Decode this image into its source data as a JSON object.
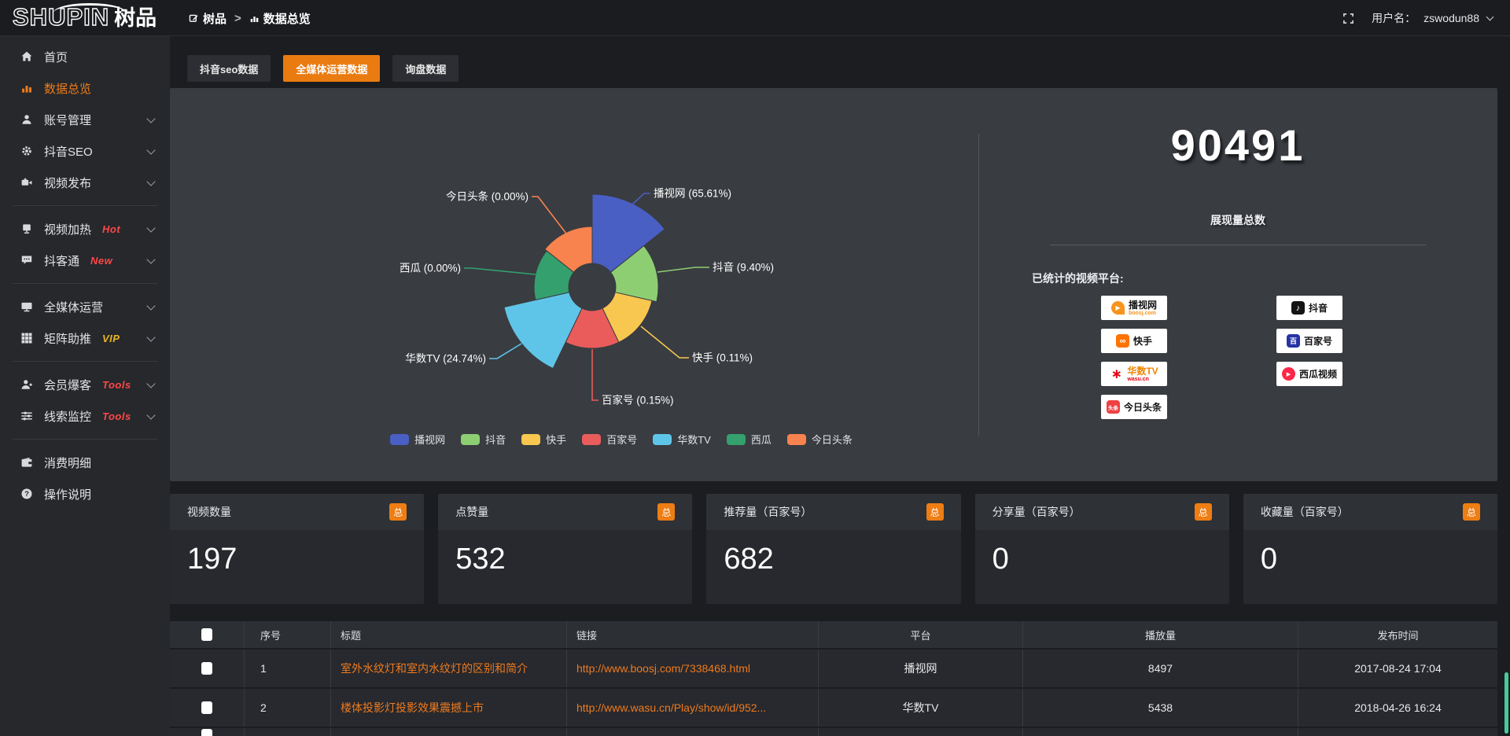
{
  "colors": {
    "accent_orange": "#ea7b11",
    "badge_orange": "#ee7d13",
    "link_orange": "#ee7a1e",
    "hot_red": "#ff4747",
    "vip_gold": "#e9b41f"
  },
  "logo": {
    "latin": "SHUPIN",
    "cjk": "树品"
  },
  "topbar": {
    "breadcrumb": {
      "root": "树品",
      "separator": ">",
      "current": "数据总览"
    },
    "username_label": "用户名：",
    "username": "zswodun88"
  },
  "sidebar": {
    "items": [
      {
        "label": "首页",
        "icon": "home",
        "chevron": false,
        "active": false,
        "badge": "",
        "badge_color": "",
        "group_end": false
      },
      {
        "label": "数据总览",
        "icon": "bars",
        "chevron": false,
        "active": true,
        "badge": "",
        "badge_color": "",
        "group_end": false
      },
      {
        "label": "账号管理",
        "icon": "user",
        "chevron": true,
        "active": false,
        "badge": "",
        "badge_color": "",
        "group_end": false
      },
      {
        "label": "抖音SEO",
        "icon": "gear",
        "chevron": true,
        "active": false,
        "badge": "",
        "badge_color": "",
        "group_end": false
      },
      {
        "label": "视频发布",
        "icon": "video",
        "chevron": true,
        "active": false,
        "badge": "",
        "badge_color": "",
        "group_end": true
      },
      {
        "label": "视频加热",
        "icon": "heat",
        "chevron": true,
        "active": false,
        "badge": "Hot",
        "badge_color": "#ff4747",
        "group_end": false
      },
      {
        "label": "抖客通",
        "icon": "chat",
        "chevron": true,
        "active": false,
        "badge": "New",
        "badge_color": "#ff4747",
        "group_end": true
      },
      {
        "label": "全媒体运营",
        "icon": "monitor",
        "chevron": true,
        "active": false,
        "badge": "",
        "badge_color": "",
        "group_end": false
      },
      {
        "label": "矩阵助推",
        "icon": "grid",
        "chevron": true,
        "active": false,
        "badge": "VIP",
        "badge_color": "#e9b41f",
        "group_end": true
      },
      {
        "label": "会员爆客",
        "icon": "member",
        "chevron": true,
        "active": false,
        "badge": "Tools",
        "badge_color": "#ff4747",
        "group_end": false
      },
      {
        "label": "线索监控",
        "icon": "sliders",
        "chevron": true,
        "active": false,
        "badge": "Tools",
        "badge_color": "#ff4747",
        "group_end": true
      },
      {
        "label": "消费明细",
        "icon": "wallet",
        "chevron": false,
        "active": false,
        "badge": "",
        "badge_color": "",
        "group_end": false
      },
      {
        "label": "操作说明",
        "icon": "question",
        "chevron": false,
        "active": false,
        "badge": "",
        "badge_color": "",
        "group_end": false
      }
    ]
  },
  "tabs": [
    {
      "label": "抖音seo数据",
      "active": false
    },
    {
      "label": "全媒体运营数据",
      "active": true
    },
    {
      "label": "询盘数据",
      "active": false
    }
  ],
  "chart_data": {
    "type": "pie",
    "variant": "nightingale-rose",
    "legend_position": "bottom",
    "items": [
      {
        "name": "播视网",
        "pct": 65.61,
        "color": "#4a5fc4"
      },
      {
        "name": "抖音",
        "pct": 9.4,
        "color": "#8ece73"
      },
      {
        "name": "快手",
        "pct": 0.11,
        "color": "#f7c74f"
      },
      {
        "name": "百家号",
        "pct": 0.15,
        "color": "#ea5c5c"
      },
      {
        "name": "华数TV",
        "pct": 24.74,
        "color": "#5fc5e8"
      },
      {
        "name": "西瓜",
        "pct": 0.0,
        "color": "#34a06e"
      },
      {
        "name": "今日头条",
        "pct": 0.0,
        "color": "#f8834e"
      }
    ],
    "legend": [
      "播视网",
      "抖音",
      "快手",
      "百家号",
      "华数TV",
      "西瓜",
      "今日头条"
    ]
  },
  "summary": {
    "total_value": "90491",
    "total_label": "展现量总数",
    "platforms_label": "已统计的视频平台:",
    "platforms": [
      {
        "label": "播视网",
        "sub": "boosj.com",
        "icon": "boshiwang"
      },
      {
        "label": "抖音",
        "sub": "",
        "icon": "douyin"
      },
      {
        "label": "快手",
        "sub": "",
        "icon": "kuaishou"
      },
      {
        "label": "百家号",
        "sub": "",
        "icon": "baijiahao"
      },
      {
        "label": "华数TV",
        "sub": "wasu.cn",
        "icon": "huashu"
      },
      {
        "label": "西瓜视频",
        "sub": "",
        "icon": "xigua"
      },
      {
        "label": "今日头条",
        "sub": "",
        "icon": "toutiao"
      }
    ]
  },
  "stat_cards": [
    {
      "title": "视频数量",
      "badge": "总",
      "value": "197"
    },
    {
      "title": "点赞量",
      "badge": "总",
      "value": "532"
    },
    {
      "title": "推荐量（百家号）",
      "badge": "总",
      "value": "682"
    },
    {
      "title": "分享量（百家号）",
      "badge": "总",
      "value": "0"
    },
    {
      "title": "收藏量（百家号）",
      "badge": "总",
      "value": "0"
    }
  ],
  "table": {
    "headers": [
      "序号",
      "标题",
      "链接",
      "平台",
      "播放量",
      "发布时间"
    ],
    "rows": [
      {
        "no": "1",
        "title": "室外水纹灯和室内水纹灯的区别和简介",
        "link": "http://www.boosj.com/7338468.html",
        "platform": "播视网",
        "plays": "8497",
        "time": "2017-08-24 17:04"
      },
      {
        "no": "2",
        "title": "楼体投影灯投影效果震撼上市",
        "link": "http://www.wasu.cn/Play/show/id/952...",
        "platform": "华数TV",
        "plays": "5438",
        "time": "2018-04-26 16:24"
      }
    ]
  }
}
